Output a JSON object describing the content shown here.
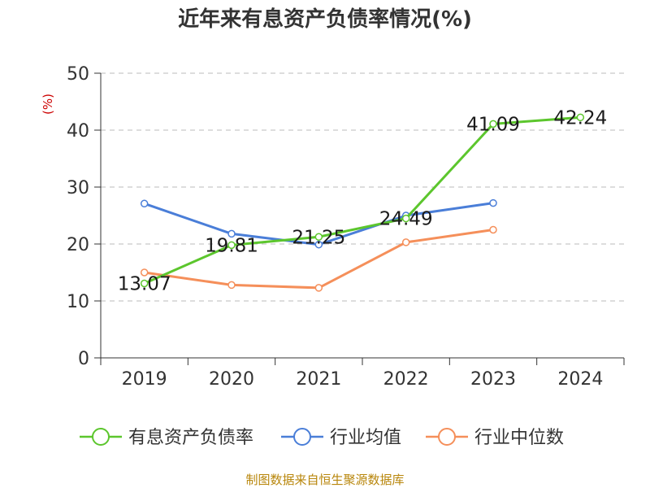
{
  "chart_data": {
    "type": "line",
    "title": "近年来有息资产负债率情况(%)",
    "ylabel": "(%)",
    "xlabel": "",
    "categories": [
      "2019",
      "2020",
      "2021",
      "2022",
      "2023",
      "2024"
    ],
    "y_ticks": [
      "0",
      "10",
      "20",
      "30",
      "40",
      "50"
    ],
    "ylim": [
      0,
      50
    ],
    "grid": true,
    "series": [
      {
        "name": "有息资产负债率",
        "color": "#5cc62d",
        "values": [
          13.07,
          19.81,
          21.25,
          24.49,
          41.09,
          42.24
        ],
        "labels": [
          "13.07",
          "19.81",
          "21.25",
          "24.49",
          "41.09",
          "42.24"
        ]
      },
      {
        "name": "行业均值",
        "color": "#4a7ed8",
        "values": [
          27.1,
          21.8,
          19.9,
          25.0,
          27.2,
          null
        ],
        "labels": []
      },
      {
        "name": "行业中位数",
        "color": "#f58f5a",
        "values": [
          15.0,
          12.8,
          12.3,
          20.3,
          22.5,
          null
        ],
        "labels": []
      }
    ],
    "legend_position": "bottom",
    "source": "制图数据来自恒生聚源数据库"
  }
}
